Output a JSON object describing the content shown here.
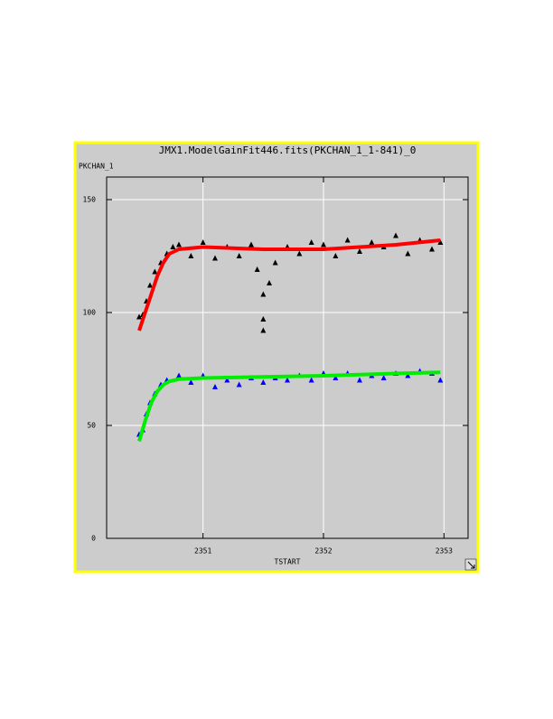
{
  "chart_data": {
    "type": "scatter",
    "title": "JMX1.ModelGainFit446.fits(PKCHAN_1_1-841)_0",
    "y_label": "PKCHAN_1",
    "x_label": "TSTART",
    "xlim": [
      2350.2,
      2353.2
    ],
    "xticks": [
      2351,
      2352,
      2353
    ],
    "ylim": [
      0,
      160
    ],
    "yticks": [
      0,
      50,
      100,
      150
    ],
    "grid": true,
    "series": [
      {
        "color": "#000000",
        "marker": "triangle",
        "x": [
          2350.47,
          2350.5,
          2350.53,
          2350.56,
          2350.6,
          2350.65,
          2350.7,
          2350.75,
          2350.8,
          2350.9,
          2351.0,
          2351.1,
          2351.2,
          2351.3,
          2351.4,
          2351.45,
          2351.5,
          2351.5,
          2351.5,
          2351.55,
          2351.6,
          2351.7,
          2351.8,
          2351.9,
          2352.0,
          2352.1,
          2352.2,
          2352.3,
          2352.4,
          2352.5,
          2352.6,
          2352.7,
          2352.8,
          2352.9,
          2352.97
        ],
        "values": [
          98,
          99,
          105,
          112,
          118,
          122,
          126,
          129,
          130,
          125,
          131,
          124,
          129,
          125,
          130,
          119,
          92,
          97,
          108,
          113,
          122,
          129,
          126,
          131,
          130,
          125,
          132,
          127,
          131,
          129,
          134,
          126,
          132,
          128,
          131
        ]
      },
      {
        "color": "#0000ff",
        "marker": "triangle",
        "x": [
          2350.47,
          2350.5,
          2350.53,
          2350.56,
          2350.6,
          2350.65,
          2350.7,
          2350.8,
          2350.9,
          2351.0,
          2351.1,
          2351.2,
          2351.3,
          2351.4,
          2351.5,
          2351.6,
          2351.7,
          2351.8,
          2351.9,
          2352.0,
          2352.1,
          2352.2,
          2352.3,
          2352.4,
          2352.5,
          2352.6,
          2352.7,
          2352.8,
          2352.9,
          2352.97
        ],
        "values": [
          46,
          48,
          55,
          60,
          64,
          68,
          70,
          72,
          69,
          72,
          67,
          70,
          68,
          71,
          69,
          71,
          70,
          72,
          70,
          73,
          71,
          73,
          70,
          72,
          71,
          73,
          72,
          74,
          73,
          70
        ]
      },
      {
        "color": "#ff0000",
        "marker": "line",
        "x": [
          2350.47,
          2350.52,
          2350.57,
          2350.62,
          2350.67,
          2350.72,
          2350.8,
          2351.0,
          2351.5,
          2352.0,
          2352.3,
          2352.6,
          2352.97
        ],
        "values": [
          92,
          100,
          108,
          116,
          122,
          126,
          128,
          129,
          128,
          128,
          129,
          130,
          132
        ]
      },
      {
        "color": "#00ee00",
        "marker": "line",
        "x": [
          2350.47,
          2350.52,
          2350.57,
          2350.62,
          2350.67,
          2350.72,
          2350.8,
          2351.0,
          2351.5,
          2352.0,
          2352.3,
          2352.6,
          2352.97
        ],
        "values": [
          43,
          52,
          60,
          65,
          68,
          69.5,
          70.5,
          71,
          71.5,
          72,
          72.5,
          73,
          73.5
        ]
      }
    ]
  }
}
